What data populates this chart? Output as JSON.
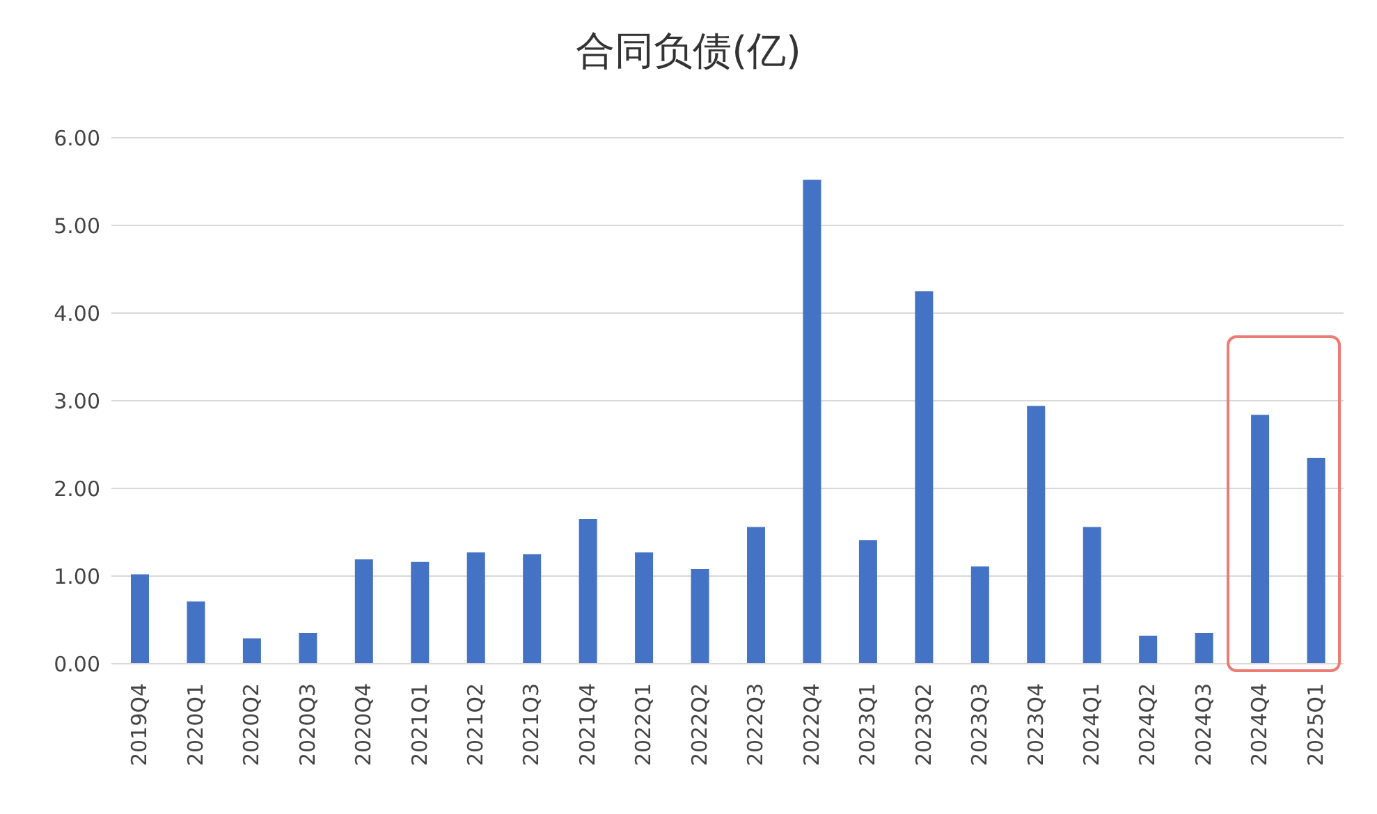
{
  "chart_data": {
    "type": "bar",
    "title": "合同负债(亿)",
    "categories": [
      "2019Q4",
      "2020Q1",
      "2020Q2",
      "2020Q3",
      "2020Q4",
      "2021Q1",
      "2021Q2",
      "2021Q3",
      "2021Q4",
      "2022Q1",
      "2022Q2",
      "2022Q3",
      "2022Q4",
      "2023Q1",
      "2023Q2",
      "2023Q3",
      "2023Q4",
      "2024Q1",
      "2024Q2",
      "2024Q3",
      "2024Q4",
      "2025Q1"
    ],
    "values": [
      1.02,
      0.71,
      0.29,
      0.35,
      1.19,
      1.16,
      1.27,
      1.25,
      1.65,
      1.27,
      1.08,
      1.56,
      5.52,
      1.41,
      4.25,
      1.11,
      2.94,
      1.56,
      0.32,
      0.35,
      2.84,
      2.35
    ],
    "color": "#4472c4",
    "ylim": [
      0,
      6
    ],
    "yticks": [
      {
        "value": 0,
        "label": "0.00"
      },
      {
        "value": 1,
        "label": "1.00"
      },
      {
        "value": 2,
        "label": "2.00"
      },
      {
        "value": 3,
        "label": "3.00"
      },
      {
        "value": 4,
        "label": "4.00"
      },
      {
        "value": 5,
        "label": "5.00"
      },
      {
        "value": 6,
        "label": "6.00"
      }
    ],
    "grid": "y"
  }
}
